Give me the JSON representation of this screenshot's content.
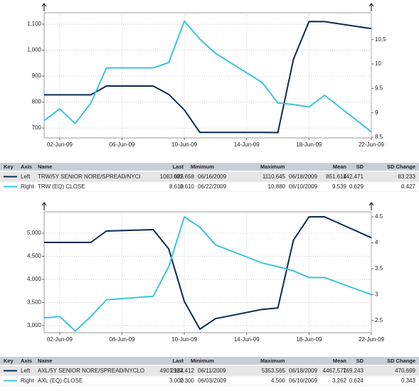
{
  "chart_data": [
    {
      "type": "line",
      "x": [
        "2009-06-01",
        "2009-06-02",
        "2009-06-03",
        "2009-06-04",
        "2009-06-05",
        "2009-06-08",
        "2009-06-09",
        "2009-06-10",
        "2009-06-11",
        "2009-06-12",
        "2009-06-15",
        "2009-06-16",
        "2009-06-17",
        "2009-06-18",
        "2009-06-19",
        "2009-06-22"
      ],
      "series": [
        {
          "name": "TRW/5Y SENIOR NORE/SPREAD/NYCI",
          "color": "#0b2a4f",
          "values": [
            828,
            828,
            828,
            828,
            862,
            862,
            830,
            770,
            683,
            683,
            683,
            682.658,
            965,
            1110.645,
            1110,
            1083.025
          ]
        },
        {
          "name": "TRW (EQ) CLOSE",
          "color": "#3cc3e0",
          "axis": "y2",
          "values": [
            8.84,
            9.08,
            8.78,
            9.2,
            9.92,
            9.92,
            10.03,
            10.88,
            10.51,
            10.22,
            9.62,
            9.2,
            9.17,
            9.12,
            9.36,
            8.61
          ]
        }
      ],
      "xlim": [
        "2009-06-01",
        "2009-06-22"
      ],
      "xticks": [
        {
          "value": "2009-06-02",
          "label": "02-Jun-09"
        },
        {
          "value": "2009-06-06",
          "label": "06-Jun-09"
        },
        {
          "value": "2009-06-10",
          "label": "10-Jun-09"
        },
        {
          "value": "2009-06-14",
          "label": "14-Jun-09"
        },
        {
          "value": "2009-06-18",
          "label": "18-Jun-09"
        },
        {
          "value": "2009-06-22",
          "label": "22-Jun-09"
        }
      ],
      "ylim": [
        662,
        1144
      ],
      "yticks": [
        700,
        800,
        900,
        {
          "value": 1000,
          "label": "1,000"
        },
        {
          "value": 1100,
          "label": "1,100"
        }
      ],
      "y2lim": [
        8.485,
        11.05
      ],
      "y2ticks": [
        8.5,
        9,
        9.5,
        10,
        10.5
      ],
      "grid": true
    },
    {
      "type": "line",
      "x": [
        "2009-06-01",
        "2009-06-02",
        "2009-06-03",
        "2009-06-04",
        "2009-06-05",
        "2009-06-08",
        "2009-06-09",
        "2009-06-10",
        "2009-06-11",
        "2009-06-12",
        "2009-06-15",
        "2009-06-16",
        "2009-06-17",
        "2009-06-18",
        "2009-06-19",
        "2009-06-22"
      ],
      "series": [
        {
          "name": "AXL/5Y SENIOR NORE/SPREAD/NYCLO",
          "color": "#0b2a4f",
          "values": [
            4800,
            4800,
            4800,
            4800,
            5046,
            5077,
            4660,
            3523,
            2922.412,
            3150,
            3350,
            3380,
            4850,
            5353.565,
            5354,
            4901.164
          ]
        },
        {
          "name": "AXL (EQ) CLOSE",
          "color": "#3cc3e0",
          "axis": "y2",
          "values": [
            2.55,
            2.58,
            2.3,
            2.58,
            2.9,
            2.97,
            3.54,
            4.5,
            4.3,
            3.96,
            3.61,
            3.54,
            3.46,
            3.33,
            3.33,
            3
          ]
        }
      ],
      "xlim": [
        "2009-06-01",
        "2009-06-22"
      ],
      "xticks": [
        {
          "value": "2009-06-02",
          "label": "02-Jun-09"
        },
        {
          "value": "2009-06-06",
          "label": "06-Jun-09"
        },
        {
          "value": "2009-06-10",
          "label": "10-Jun-09"
        },
        {
          "value": "2009-06-14",
          "label": "14-Jun-09"
        },
        {
          "value": "2009-06-18",
          "label": "18-Jun-09"
        },
        {
          "value": "2009-06-22",
          "label": "22-Jun-09"
        }
      ],
      "ylim": [
        2846,
        5462
      ],
      "yticks": [
        {
          "value": 3000,
          "label": "3,000"
        },
        {
          "value": 3500,
          "label": "3,500"
        },
        {
          "value": 4000,
          "label": "4,000"
        },
        {
          "value": 4500,
          "label": "4,500"
        },
        {
          "value": 5000,
          "label": "5,000"
        }
      ],
      "y2lim": [
        2.267,
        4.596
      ],
      "y2ticks": [
        2.5,
        3,
        3.5,
        4,
        4.5
      ],
      "grid": true
    }
  ],
  "tables": [
    {
      "columns": [
        "Key",
        "Axis",
        "Name",
        "Last",
        "Minimum",
        "Maximum",
        "Mean",
        "SD",
        "SD Change"
      ],
      "rows": [
        [
          "Left",
          "TRW/5Y SENIOR NORE/SPREAD/NYCI",
          "1083.025",
          "682.658",
          "06/16/2009",
          "1110.645",
          "06/18/2009",
          "851.614",
          "142.471",
          "83.233"
        ],
        [
          "Right",
          "TRW (EQ) CLOSE",
          "8.610",
          "8.610",
          "06/22/2009",
          "10.880",
          "06/10/2009",
          "9.539",
          "0.629",
          "0.427"
        ]
      ]
    },
    {
      "columns": [
        "Key",
        "Axis",
        "Name",
        "Last",
        "Minimum",
        "Maximum",
        "Mean",
        "SD",
        "SD Change"
      ],
      "rows": [
        [
          "Left",
          "AXL/5Y SENIOR NORE/SPREAD/NYCLO",
          "4901.164",
          "2922.412",
          "06/11/2009",
          "5353.565",
          "06/18/2009",
          "4467.571",
          "769.243",
          "470.699"
        ],
        [
          "Right",
          "AXL (EQ) CLOSE",
          "3.000",
          "2.300",
          "06/03/2009",
          "4.500",
          "06/10/2009",
          "3.262",
          "0.624",
          "0.343"
        ]
      ]
    }
  ]
}
